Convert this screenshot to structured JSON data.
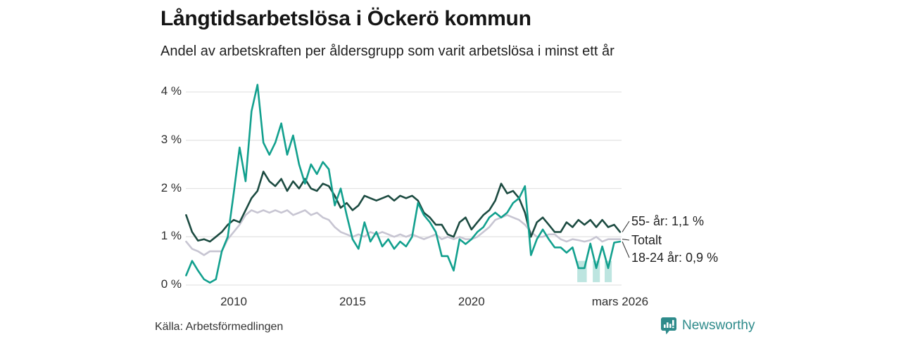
{
  "header": {
    "title": "Långtidsarbetslösa i Öckerö kommun",
    "subtitle": "Andel av arbetskraften per åldersgrupp som varit arbetslösa i minst ett år"
  },
  "footer": {
    "source": "Källa: Arbetsförmedlingen",
    "brand_name": "Newsworthy"
  },
  "colors": {
    "series_55": "#1c4b41",
    "series_total": "#c7c5d2",
    "series_18_24": "#12a08e",
    "uncertainty_band": "rgba(18,160,142,0.28)",
    "grid": "#e4e4e4",
    "leader_line": "#3a3a3a",
    "brand_teal": "#2e8b8b"
  },
  "chart_data": {
    "type": "line",
    "title": "Långtidsarbetslösa i Öckerö kommun",
    "subtitle": "Andel av arbetskraften per åldersgrupp som varit arbetslösa i minst ett år",
    "xlabel": "",
    "ylabel": "",
    "grid": true,
    "legend_position": "right-end-labels",
    "x_range": [
      2008.0,
      2026.25
    ],
    "ylim": [
      0,
      4.3
    ],
    "x_start": 2008.0,
    "x_step": 0.25,
    "y_axis": {
      "ticks": [
        {
          "value": 0,
          "label": "0 %"
        },
        {
          "value": 1,
          "label": "1 %"
        },
        {
          "value": 2,
          "label": "2 %"
        },
        {
          "value": 3,
          "label": "3 %"
        },
        {
          "value": 4,
          "label": "4 %"
        }
      ]
    },
    "x_axis": {
      "ticks": [
        {
          "value": 2010,
          "label": "2010"
        },
        {
          "value": 2015,
          "label": "2015"
        },
        {
          "value": 2020,
          "label": "2020"
        },
        {
          "value": 2026.25,
          "label": "mars 2026"
        }
      ]
    },
    "series": [
      {
        "name": "55- år",
        "end_label": "55- år: 1,1 %",
        "end_value": "1,1 %",
        "color": "#1c4b41",
        "values": [
          1.45,
          1.1,
          0.92,
          0.95,
          0.9,
          1.0,
          1.1,
          1.25,
          1.35,
          1.3,
          1.55,
          1.8,
          1.95,
          2.35,
          2.15,
          2.05,
          2.2,
          1.95,
          2.15,
          2.0,
          2.2,
          2.0,
          1.95,
          2.1,
          2.05,
          1.85,
          1.6,
          1.7,
          1.55,
          1.65,
          1.85,
          1.8,
          1.75,
          1.8,
          1.85,
          1.75,
          1.85,
          1.8,
          1.85,
          1.75,
          1.5,
          1.4,
          1.25,
          1.25,
          1.05,
          1.0,
          1.3,
          1.4,
          1.15,
          1.3,
          1.45,
          1.55,
          1.75,
          2.1,
          1.9,
          1.95,
          1.8,
          1.5,
          1.0,
          1.3,
          1.4,
          1.25,
          1.1,
          1.1,
          1.3,
          1.2,
          1.35,
          1.25,
          1.35,
          1.2,
          1.35,
          1.2,
          1.25,
          1.1
        ]
      },
      {
        "name": "Totalt",
        "end_label": "Totalt",
        "end_value": "",
        "color": "#c7c5d2",
        "values": [
          0.9,
          0.75,
          0.7,
          0.62,
          0.7,
          0.7,
          0.7,
          0.95,
          1.1,
          1.25,
          1.45,
          1.55,
          1.5,
          1.55,
          1.5,
          1.55,
          1.5,
          1.55,
          1.45,
          1.5,
          1.55,
          1.45,
          1.5,
          1.4,
          1.35,
          1.2,
          1.1,
          1.05,
          1.0,
          1.05,
          1.0,
          1.1,
          1.05,
          1.1,
          1.05,
          1.0,
          1.05,
          1.0,
          1.05,
          1.0,
          0.95,
          1.0,
          1.05,
          0.95,
          1.0,
          0.95,
          1.0,
          0.95,
          0.95,
          1.0,
          1.1,
          1.2,
          1.35,
          1.4,
          1.45,
          1.4,
          1.35,
          1.25,
          1.1,
          1.0,
          1.0,
          1.05,
          1.05,
          0.95,
          0.9,
          0.95,
          0.93,
          0.9,
          0.93,
          1.0,
          0.9,
          0.95,
          0.95,
          0.95
        ]
      },
      {
        "name": "18-24 år",
        "end_label": "18-24 år: 0,9 %",
        "end_value": "0,9 %",
        "color": "#12a08e",
        "values": [
          0.2,
          0.5,
          0.3,
          0.12,
          0.05,
          0.12,
          0.7,
          1.0,
          1.9,
          2.85,
          2.15,
          3.6,
          4.15,
          2.95,
          2.7,
          2.95,
          3.35,
          2.7,
          3.1,
          2.5,
          2.1,
          2.5,
          2.3,
          2.55,
          2.4,
          1.65,
          2.0,
          1.45,
          0.95,
          0.75,
          1.3,
          0.9,
          1.1,
          0.8,
          0.95,
          0.75,
          0.9,
          0.8,
          1.0,
          1.7,
          1.45,
          1.3,
          1.1,
          0.6,
          0.6,
          0.3,
          0.95,
          0.85,
          0.95,
          1.1,
          1.2,
          1.4,
          1.5,
          1.4,
          1.5,
          1.7,
          1.8,
          2.05,
          0.62,
          0.95,
          1.15,
          0.95,
          0.78,
          0.78,
          0.67,
          0.78,
          0.35,
          0.35,
          0.86,
          0.35,
          0.8,
          0.35,
          0.88,
          0.9
        ]
      }
    ],
    "uncertainty_bands": [
      {
        "x0": 2024.45,
        "x1": 2024.85,
        "y0": 0.06,
        "y1": 0.5
      },
      {
        "x0": 2025.1,
        "x1": 2025.4,
        "y0": 0.06,
        "y1": 0.5
      },
      {
        "x0": 2025.6,
        "x1": 2025.9,
        "y0": 0.06,
        "y1": 0.5
      }
    ]
  }
}
